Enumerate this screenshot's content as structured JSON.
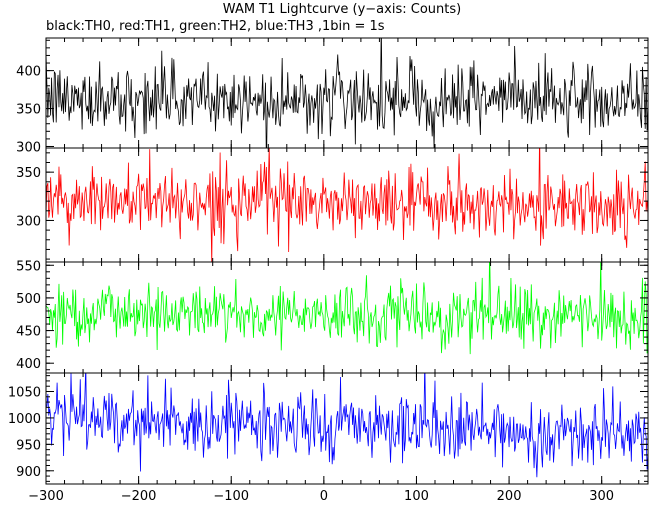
{
  "chart_data": {
    "type": "line",
    "title": "WAM T1 Lightcurve (y−axis: Counts)",
    "subtitle": "black:TH0, red:TH1, green:TH2, blue:TH3 ,1bin = 1s",
    "xlim": [
      -300,
      350
    ],
    "x_ticks": [
      -300,
      -200,
      -100,
      0,
      100,
      200,
      300
    ],
    "x_tick_labels": [
      "−300",
      "−200",
      "−100",
      "0",
      "100",
      "200",
      "300"
    ],
    "grid": false,
    "series": [
      {
        "name": "TH0",
        "color": "#000000",
        "ylim": [
          298,
          443
        ],
        "y_ticks": [
          300,
          350,
          400
        ],
        "mean": 362,
        "noise": 22,
        "trend": -0.002,
        "spikes": 0.015
      },
      {
        "name": "TH1",
        "color": "#ff0000",
        "ylim": [
          257,
          375
        ],
        "y_ticks": [
          300,
          350
        ],
        "mean": 318,
        "noise": 17,
        "trend": -0.01,
        "spikes": 0.015
      },
      {
        "name": "TH2",
        "color": "#00ff00",
        "ylim": [
          385,
          555
        ],
        "y_ticks": [
          400,
          450,
          500,
          550
        ],
        "mean": 476,
        "noise": 24,
        "trend": -0.015,
        "spikes": 0.012
      },
      {
        "name": "TH3",
        "color": "#0000ff",
        "ylim": [
          875,
          1085
        ],
        "y_ticks": [
          900,
          950,
          1000,
          1050
        ],
        "mean": 985,
        "noise": 32,
        "trend": -0.055,
        "spikes": 0.012
      }
    ]
  }
}
